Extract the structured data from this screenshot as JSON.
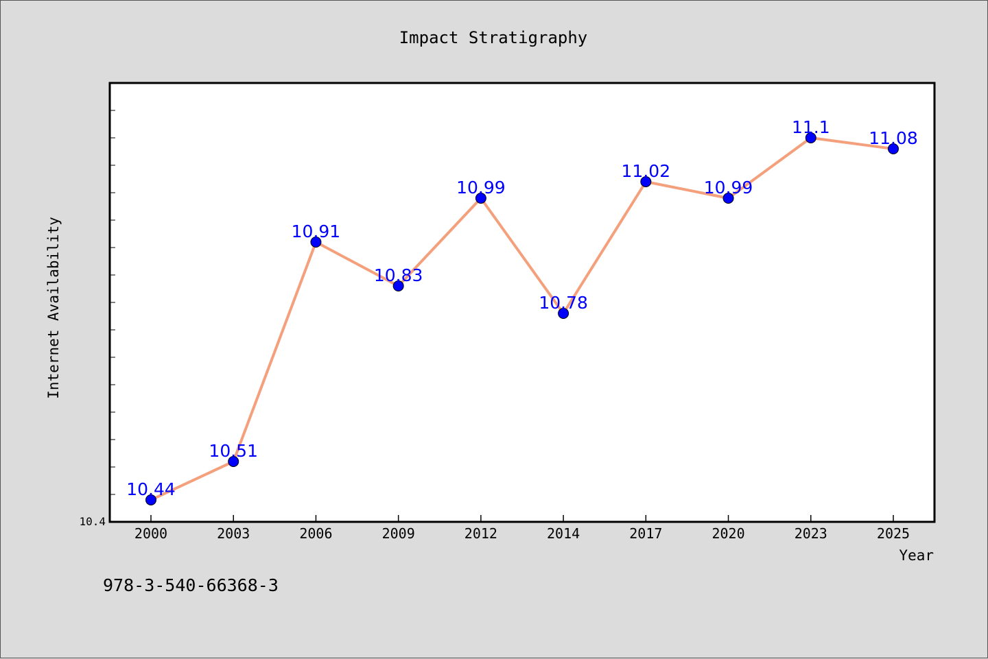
{
  "chart_data": {
    "type": "line",
    "title": "Impact Stratigraphy",
    "xlabel": "Year",
    "ylabel": "Internet Availability",
    "categories": [
      "2000",
      "2003",
      "2006",
      "2009",
      "2012",
      "2014",
      "2017",
      "2020",
      "2023",
      "2025"
    ],
    "series": [
      {
        "values": [
          10.44,
          10.51,
          10.91,
          10.83,
          10.99,
          10.78,
          11.02,
          10.99,
          11.1,
          11.08
        ],
        "data_labels": [
          "10.44",
          "10.51",
          "10.91",
          "10.83",
          "10.99",
          "10.78",
          "11.02",
          "10.99",
          "11.1",
          "11.08"
        ]
      }
    ],
    "ylim": [
      10.4,
      11.2
    ],
    "ytick_labels": [
      "10.4"
    ],
    "grid": false,
    "colors": {
      "line": "#f4a07c",
      "marker": "#0000ff",
      "data_label": "#0000ff",
      "plot_background": "#ffffff",
      "figure_background": "#dcdcdc"
    }
  },
  "footnote": "978-3-540-66368-3"
}
